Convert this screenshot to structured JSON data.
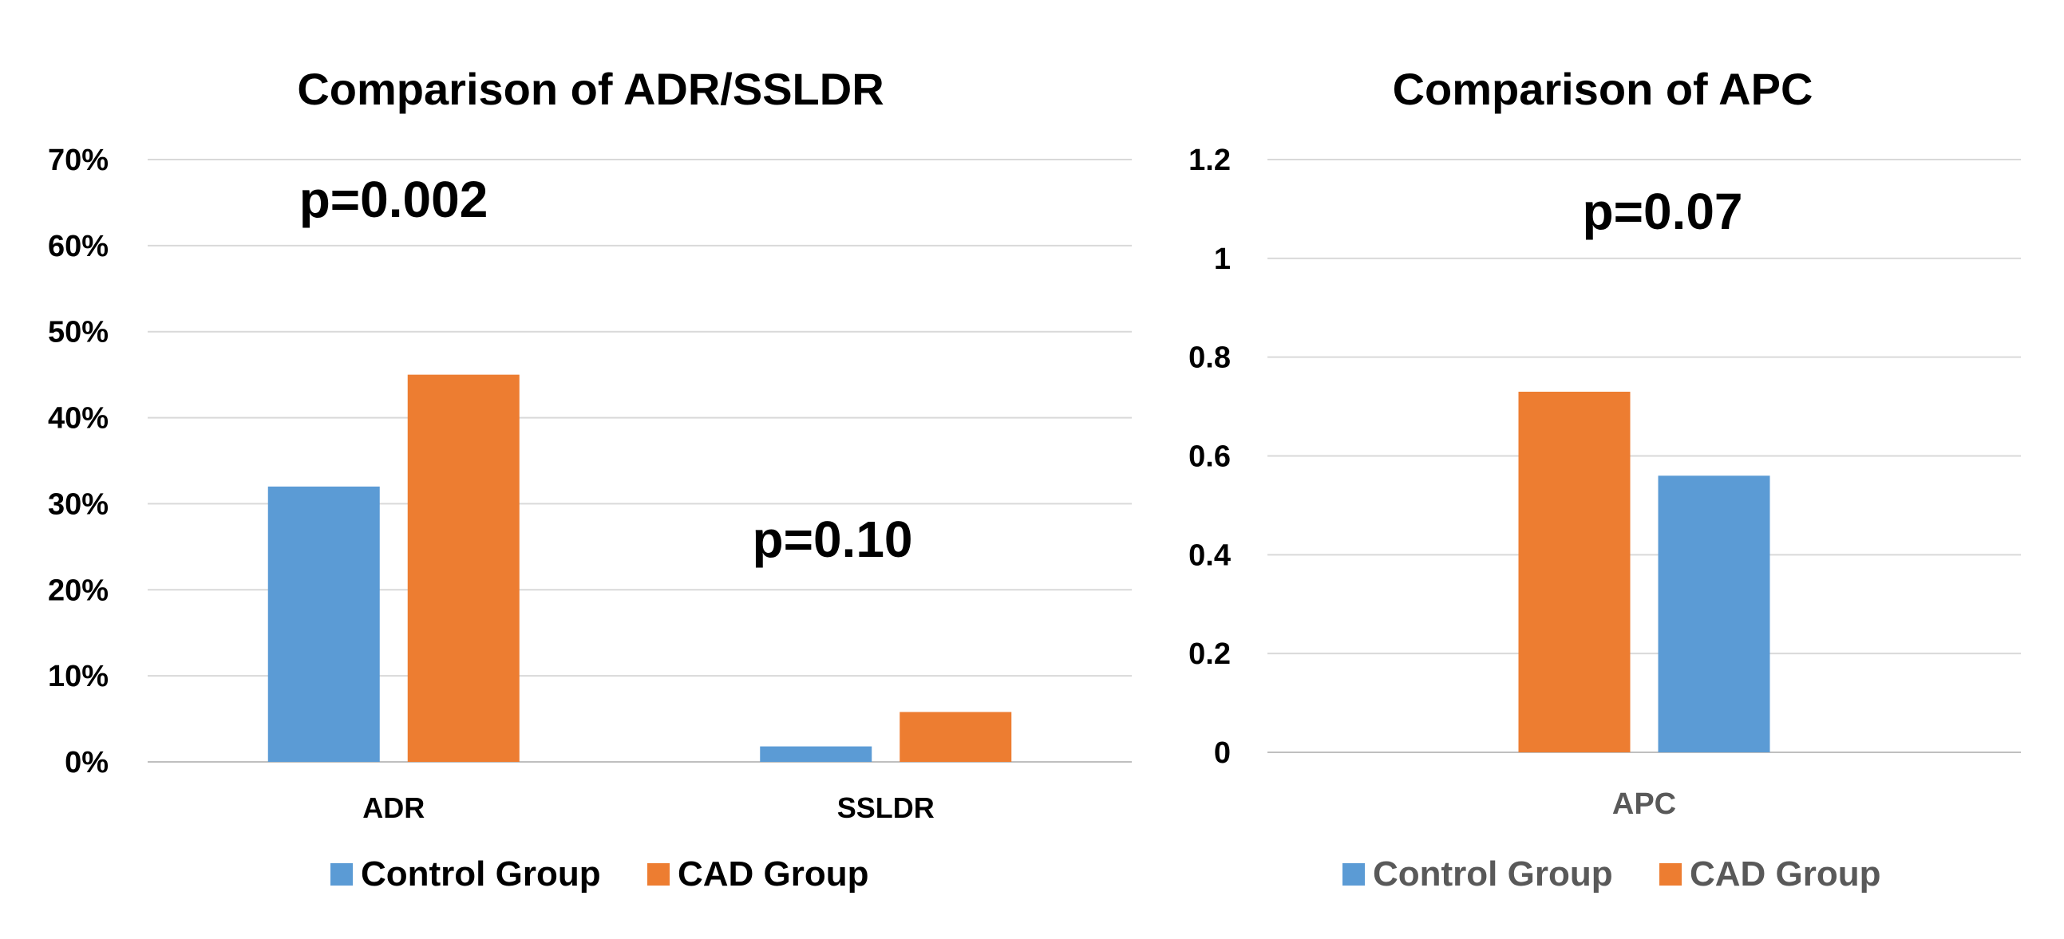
{
  "colors": {
    "control": "#5B9BD5",
    "cad": "#ED7D31",
    "grid": "#D9D9D9",
    "axis_text_gray": "#595959"
  },
  "chart_data": [
    {
      "type": "bar",
      "title": "Comparison of ADR/SSLDR",
      "categories": [
        "ADR",
        "SSLDR"
      ],
      "series": [
        {
          "name": "Control Group",
          "values": [
            32,
            1.8
          ]
        },
        {
          "name": "CAD Group",
          "values": [
            45,
            5.8
          ]
        }
      ],
      "ylim": [
        0,
        70
      ],
      "yticks": [
        0,
        10,
        20,
        30,
        40,
        50,
        60,
        70
      ],
      "ytick_labels": [
        "0%",
        "10%",
        "20%",
        "30%",
        "40%",
        "50%",
        "60%",
        "70%"
      ],
      "xlabel": "",
      "ylabel": "",
      "grid": true,
      "legend": "bottom",
      "annotations": [
        {
          "text": "p=0.002",
          "category": "ADR"
        },
        {
          "text": "p=0.10",
          "category": "SSLDR"
        }
      ]
    },
    {
      "type": "bar",
      "title": "Comparison of APC",
      "categories": [
        "APC"
      ],
      "series": [
        {
          "name": "CAD Group",
          "values": [
            0.73
          ]
        },
        {
          "name": "Control Group",
          "values": [
            0.56
          ]
        }
      ],
      "legend_order": [
        "Control Group",
        "CAD Group"
      ],
      "ylim": [
        0,
        1.2
      ],
      "yticks": [
        0,
        0.2,
        0.4,
        0.6,
        0.8,
        1,
        1.2
      ],
      "ytick_labels": [
        "0",
        "0.2",
        "0.4",
        "0.6",
        "0.8",
        "1",
        "1.2"
      ],
      "xlabel": "",
      "ylabel": "",
      "grid": true,
      "legend": "bottom",
      "annotations": [
        {
          "text": "p=0.07",
          "category": "APC"
        }
      ]
    }
  ]
}
